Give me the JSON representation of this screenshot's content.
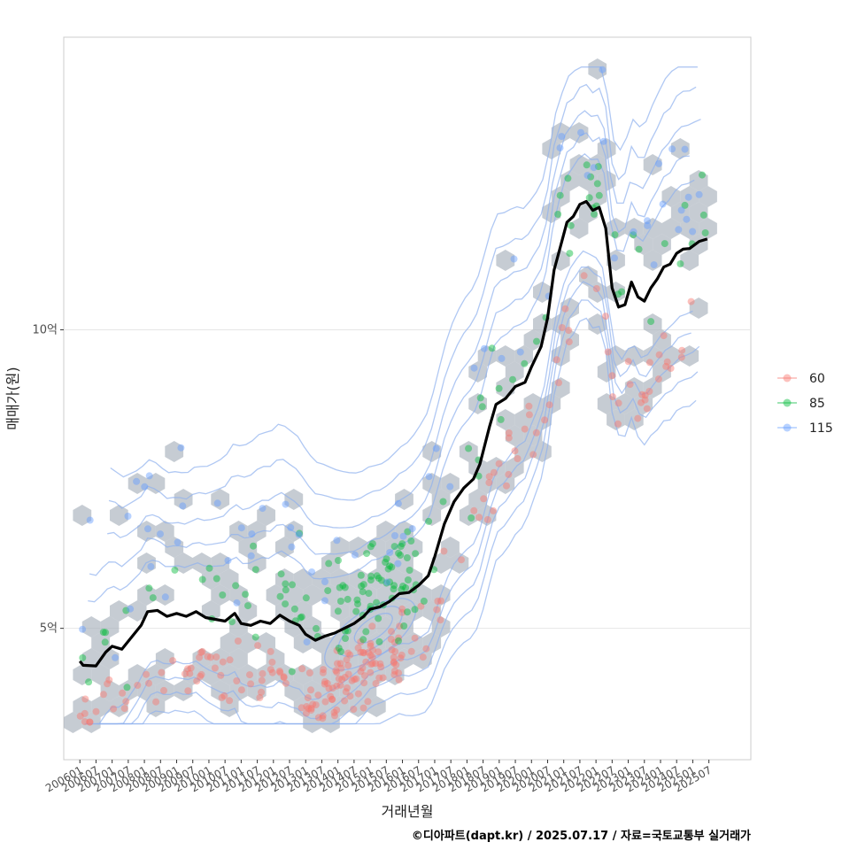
{
  "chart_data": {
    "type": "scatter",
    "xlabel": "거래년월",
    "ylabel": "매매가(원)",
    "caption": "©디아파트(dapt.kr) / 2025.07.17 / 자료=국토교통부 실거래가",
    "x_ticks": [
      "200601",
      "200607",
      "200701",
      "200707",
      "200801",
      "200807",
      "200901",
      "200907",
      "201001",
      "201007",
      "201101",
      "201107",
      "201201",
      "201207",
      "201301",
      "201307",
      "201401",
      "201407",
      "201501",
      "201507",
      "201601",
      "201607",
      "201701",
      "201707",
      "201801",
      "201807",
      "201901",
      "201907",
      "202001",
      "202007",
      "202101",
      "202107",
      "202201",
      "202207",
      "202301",
      "202307",
      "202401",
      "202407",
      "202501",
      "202507"
    ],
    "xlim": [
      2005.5,
      2026.8
    ],
    "ylim": [
      2.8,
      14.9
    ],
    "y_ticks": [
      {
        "value": 5,
        "label": "5억"
      },
      {
        "value": 10,
        "label": "10억"
      }
    ],
    "legend": {
      "position": "right",
      "entries": [
        {
          "label": "60",
          "color": "#f8766d"
        },
        {
          "label": "85",
          "color": "#00ba38"
        },
        {
          "label": "115",
          "color": "#619cff"
        }
      ]
    },
    "hex_color": "#a8b0bb",
    "contour_color": "#8fb0ee",
    "trend_line": {
      "color": "#000000",
      "points": [
        [
          2006.0,
          4.45
        ],
        [
          2006.1,
          4.38
        ],
        [
          2006.5,
          4.37
        ],
        [
          2006.8,
          4.6
        ],
        [
          2007.0,
          4.7
        ],
        [
          2007.3,
          4.65
        ],
        [
          2007.6,
          4.85
        ],
        [
          2007.9,
          5.05
        ],
        [
          2008.1,
          5.28
        ],
        [
          2008.4,
          5.3
        ],
        [
          2008.7,
          5.2
        ],
        [
          2009.0,
          5.25
        ],
        [
          2009.3,
          5.2
        ],
        [
          2009.6,
          5.28
        ],
        [
          2009.9,
          5.18
        ],
        [
          2010.2,
          5.15
        ],
        [
          2010.5,
          5.12
        ],
        [
          2010.8,
          5.25
        ],
        [
          2011.0,
          5.08
        ],
        [
          2011.3,
          5.05
        ],
        [
          2011.6,
          5.12
        ],
        [
          2011.9,
          5.08
        ],
        [
          2012.2,
          5.22
        ],
        [
          2012.5,
          5.12
        ],
        [
          2012.8,
          5.05
        ],
        [
          2013.0,
          4.9
        ],
        [
          2013.3,
          4.8
        ],
        [
          2013.6,
          4.87
        ],
        [
          2013.9,
          4.92
        ],
        [
          2014.2,
          5.0
        ],
        [
          2014.5,
          5.08
        ],
        [
          2014.8,
          5.2
        ],
        [
          2015.0,
          5.32
        ],
        [
          2015.3,
          5.36
        ],
        [
          2015.6,
          5.45
        ],
        [
          2015.9,
          5.58
        ],
        [
          2016.2,
          5.6
        ],
        [
          2016.5,
          5.72
        ],
        [
          2016.8,
          5.88
        ],
        [
          2017.0,
          6.2
        ],
        [
          2017.3,
          6.75
        ],
        [
          2017.6,
          7.12
        ],
        [
          2017.9,
          7.35
        ],
        [
          2018.2,
          7.5
        ],
        [
          2018.4,
          7.75
        ],
        [
          2018.7,
          8.38
        ],
        [
          2018.9,
          8.75
        ],
        [
          2019.2,
          8.85
        ],
        [
          2019.5,
          9.05
        ],
        [
          2019.8,
          9.12
        ],
        [
          2020.0,
          9.38
        ],
        [
          2020.3,
          9.72
        ],
        [
          2020.5,
          10.2
        ],
        [
          2020.7,
          11.0
        ],
        [
          2020.9,
          11.4
        ],
        [
          2021.1,
          11.8
        ],
        [
          2021.3,
          11.9
        ],
        [
          2021.5,
          12.1
        ],
        [
          2021.7,
          12.15
        ],
        [
          2021.9,
          12.0
        ],
        [
          2022.1,
          12.05
        ],
        [
          2022.3,
          11.7
        ],
        [
          2022.5,
          10.7
        ],
        [
          2022.7,
          10.38
        ],
        [
          2022.9,
          10.42
        ],
        [
          2023.1,
          10.8
        ],
        [
          2023.3,
          10.55
        ],
        [
          2023.5,
          10.48
        ],
        [
          2023.7,
          10.7
        ],
        [
          2023.9,
          10.85
        ],
        [
          2024.1,
          11.05
        ],
        [
          2024.3,
          11.1
        ],
        [
          2024.5,
          11.28
        ],
        [
          2024.7,
          11.35
        ],
        [
          2024.9,
          11.36
        ],
        [
          2025.2,
          11.48
        ],
        [
          2025.45,
          11.52
        ]
      ]
    }
  }
}
